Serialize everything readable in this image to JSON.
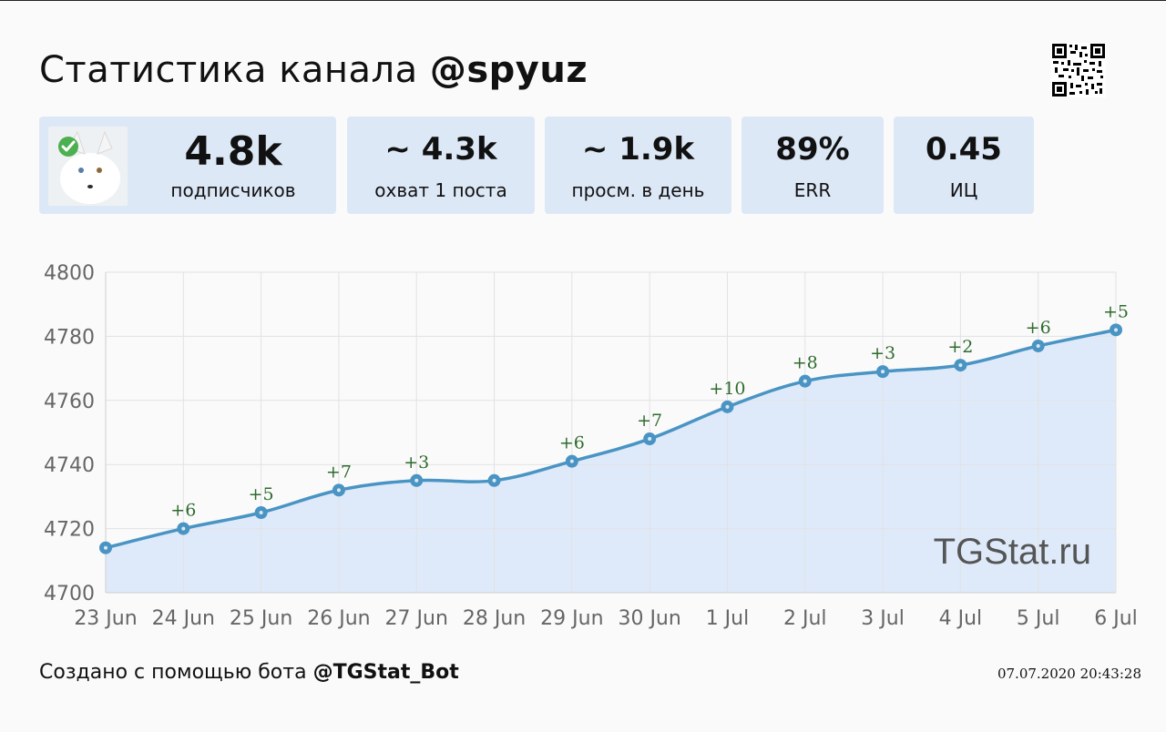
{
  "header": {
    "title_prefix": "Статистика канала ",
    "title_handle": "@spyuz"
  },
  "stats": [
    {
      "value": "4.8k",
      "label": "подписчиков"
    },
    {
      "value": "~ 4.3k",
      "label": "охват 1 поста"
    },
    {
      "value": "~ 1.9k",
      "label": "просм. в день"
    },
    {
      "value": "89%",
      "label": "ERR"
    },
    {
      "value": "0.45",
      "label": "ИЦ"
    }
  ],
  "colors": {
    "card_bg": "#dde8f7",
    "line": "#4a94c4",
    "area": "#deeafa",
    "delta_text": "#2e6b2e",
    "grid": "#e2e2e2",
    "badge": "#4caf50"
  },
  "chart_data": {
    "type": "area",
    "x": [
      "23 Jun",
      "24 Jun",
      "25 Jun",
      "26 Jun",
      "27 Jun",
      "28 Jun",
      "29 Jun",
      "30 Jun",
      "1 Jul",
      "2 Jul",
      "3 Jul",
      "4 Jul",
      "5 Jul",
      "6 Jul"
    ],
    "series": [
      {
        "values": [
          4714,
          4720,
          4725,
          4732,
          4735,
          4735,
          4741,
          4748,
          4758,
          4766,
          4769,
          4771,
          4777,
          4782
        ]
      }
    ],
    "annotations": [
      "",
      "+6",
      "+5",
      "+7",
      "+3",
      "",
      "+6",
      "+7",
      "+10",
      "+8",
      "+3",
      "+2",
      "+6",
      "+5"
    ],
    "ylim": [
      4700,
      4800
    ],
    "yticks": [
      4700,
      4720,
      4740,
      4760,
      4780,
      4800
    ],
    "grid": true,
    "watermark": "TGStat.ru"
  },
  "footer": {
    "created_prefix": "Создано с помощью бота ",
    "bot_handle": "@TGStat_Bot",
    "timestamp": "07.07.2020 20:43:28"
  }
}
